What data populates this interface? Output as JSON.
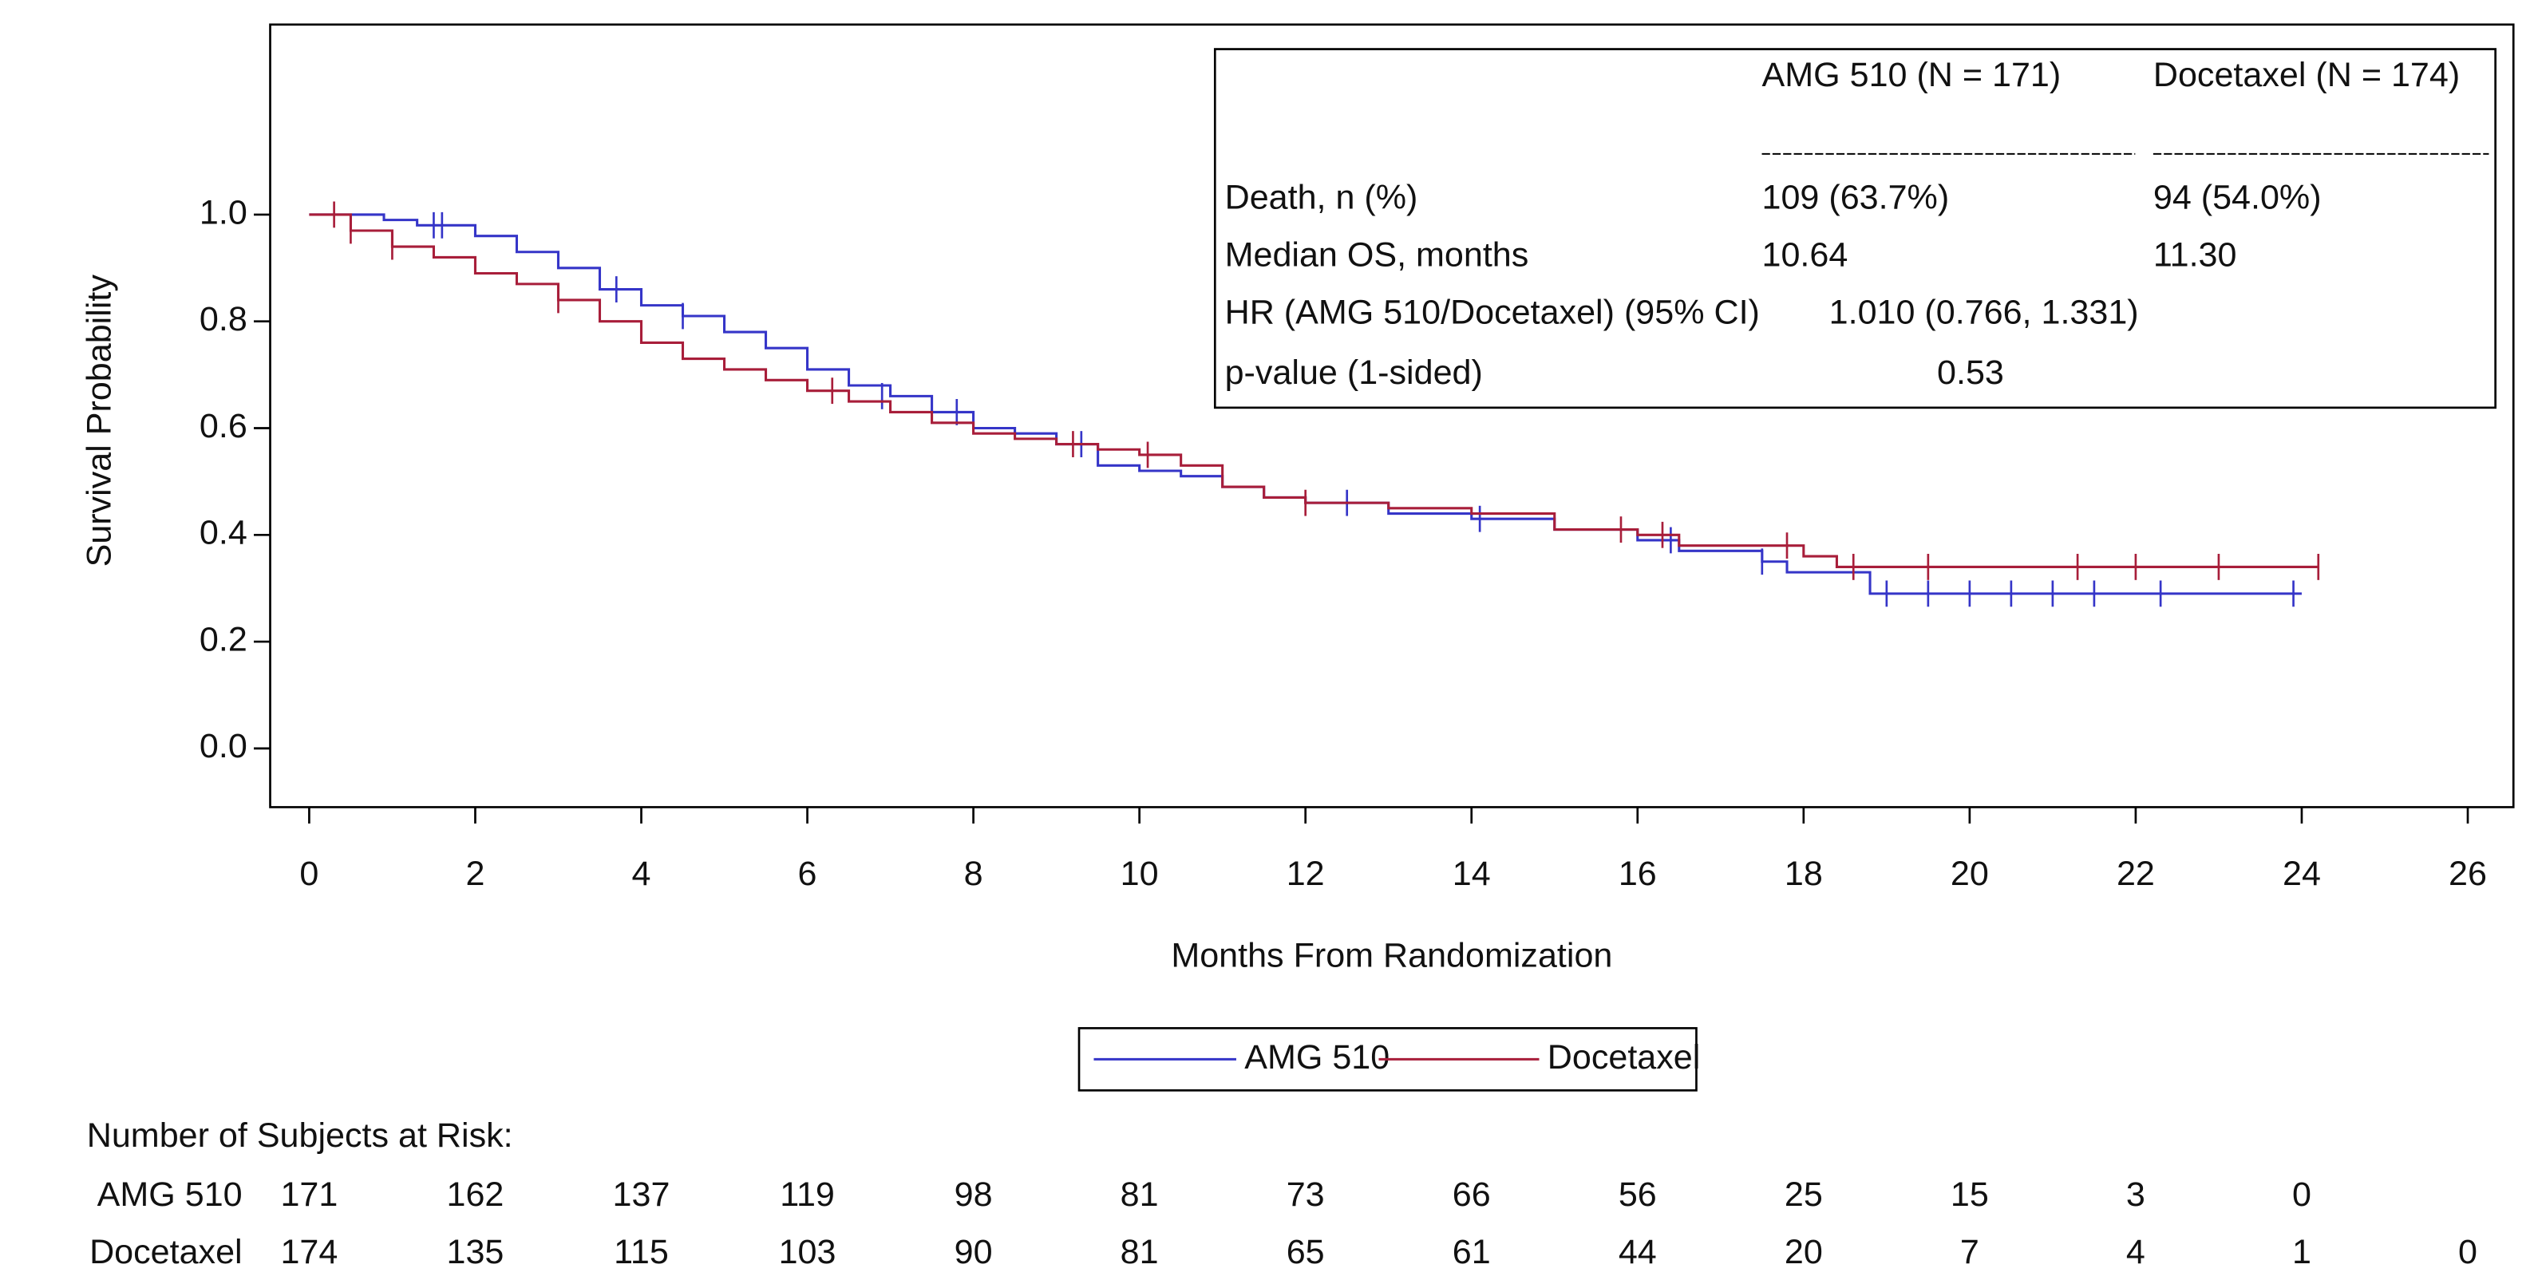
{
  "chart_data": {
    "type": "km",
    "xlabel": "Months From Randomization",
    "ylabel": "Survival Probability",
    "xlim": [
      -0.47,
      26.55
    ],
    "ylim": [
      -0.11,
      1.356
    ],
    "xticks": [
      0,
      2,
      4,
      6,
      8,
      10,
      12,
      14,
      16,
      18,
      20,
      22,
      24,
      26
    ],
    "yticks": [
      {
        "value": 0,
        "label": "0.0"
      },
      0.2,
      0.4,
      0.6,
      0.8,
      {
        "value": 1,
        "label": "1.0"
      }
    ],
    "series": [
      {
        "name": "AMG 510",
        "color": "#3535c8",
        "x": [
          0,
          0.9,
          1.3,
          2,
          2.5,
          3,
          3.5,
          4,
          4.5,
          5,
          5.5,
          6,
          6.5,
          7,
          7.5,
          8,
          8.5,
          9,
          9.5,
          10,
          10.5,
          11,
          11.5,
          12,
          13,
          14,
          15,
          16,
          16.5,
          17.5,
          17.8,
          18.8,
          24
        ],
        "values": [
          1.0,
          0.99,
          0.98,
          0.96,
          0.93,
          0.9,
          0.86,
          0.83,
          0.81,
          0.78,
          0.75,
          0.71,
          0.68,
          0.66,
          0.63,
          0.6,
          0.59,
          0.57,
          0.53,
          0.52,
          0.51,
          0.49,
          0.47,
          0.46,
          0.44,
          0.43,
          0.41,
          0.39,
          0.37,
          0.35,
          0.33,
          0.29,
          0.29
        ],
        "censor_x": [
          1.5,
          1.6,
          3.7,
          4.5,
          6.9,
          7.8,
          9.3,
          12.5,
          14.1,
          16.4,
          17.5,
          19,
          19.5,
          20,
          20.5,
          21,
          21.5,
          22.3,
          23.9
        ],
        "censor_values": [
          0.98,
          0.98,
          0.86,
          0.81,
          0.66,
          0.63,
          0.57,
          0.46,
          0.43,
          0.39,
          0.35,
          0.29,
          0.29,
          0.29,
          0.29,
          0.29,
          0.29,
          0.29,
          0.29
        ]
      },
      {
        "name": "Docetaxel",
        "color": "#a81e3a",
        "x": [
          0,
          0.5,
          1,
          1.5,
          2,
          2.5,
          3,
          3.5,
          4,
          4.5,
          5,
          5.5,
          6,
          6.5,
          7,
          7.5,
          8,
          8.5,
          9,
          9.5,
          10,
          10.5,
          11,
          11.5,
          12,
          13,
          14,
          15,
          16,
          16.5,
          18,
          18.4,
          24.2
        ],
        "values": [
          1.0,
          0.97,
          0.94,
          0.92,
          0.89,
          0.87,
          0.84,
          0.8,
          0.76,
          0.73,
          0.71,
          0.69,
          0.67,
          0.65,
          0.63,
          0.61,
          0.59,
          0.58,
          0.57,
          0.56,
          0.55,
          0.53,
          0.49,
          0.47,
          0.46,
          0.45,
          0.44,
          0.41,
          0.4,
          0.38,
          0.36,
          0.34,
          0.34
        ],
        "censor_x": [
          0.3,
          0.5,
          1,
          3,
          6.3,
          9.2,
          10.1,
          12,
          15.8,
          16.3,
          17.8,
          18.6,
          19.5,
          21.3,
          22,
          23,
          24.2
        ],
        "censor_values": [
          1.0,
          0.97,
          0.94,
          0.84,
          0.67,
          0.57,
          0.55,
          0.46,
          0.41,
          0.4,
          0.38,
          0.34,
          0.34,
          0.34,
          0.34,
          0.34,
          0.34
        ]
      }
    ],
    "annotation": {
      "headers": [
        "AMG 510 (N = 171)",
        "Docetaxel (N = 174)"
      ],
      "rows": [
        {
          "label": "Death, n (%)",
          "values": [
            "109 (63.7%)",
            "94 (54.0%)"
          ]
        },
        {
          "label": "Median OS, months",
          "values": [
            "10.64",
            "11.30"
          ]
        },
        {
          "label": "HR (AMG 510/Docetaxel) (95% CI)",
          "values": [
            "1.010 (0.766, 1.331)"
          ]
        },
        {
          "label": "p-value (1-sided)",
          "values": [
            "0.53"
          ]
        }
      ]
    },
    "risk_table": {
      "title": "Number of Subjects at Risk:",
      "rows": [
        {
          "name": "AMG 510",
          "color": "#3535d8",
          "values": [
            171,
            162,
            137,
            119,
            98,
            81,
            73,
            66,
            56,
            25,
            15,
            3,
            0
          ]
        },
        {
          "name": "Docetaxel",
          "color": "#b0213a",
          "values": [
            174,
            135,
            115,
            103,
            90,
            81,
            65,
            61,
            44,
            20,
            7,
            4,
            1,
            0
          ]
        }
      ]
    }
  }
}
